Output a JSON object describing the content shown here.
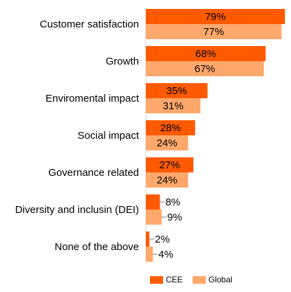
{
  "chart_data": {
    "type": "bar",
    "orientation": "horizontal",
    "categories": [
      "Customer satisfaction",
      "Growth",
      "Enviromental impact",
      "Social impact",
      "Governance related",
      "Diversity and inclusin (DEI)",
      "None of the above"
    ],
    "series": [
      {
        "name": "CEE",
        "color": "#ff5a00",
        "values": [
          79,
          68,
          35,
          28,
          27,
          8,
          2
        ]
      },
      {
        "name": "Global",
        "color": "#ffa86b",
        "values": [
          77,
          67,
          31,
          24,
          24,
          9,
          4
        ]
      }
    ],
    "value_suffix": "%",
    "xlim": [
      0,
      79
    ],
    "grid": false,
    "legend": "bottom-right"
  }
}
